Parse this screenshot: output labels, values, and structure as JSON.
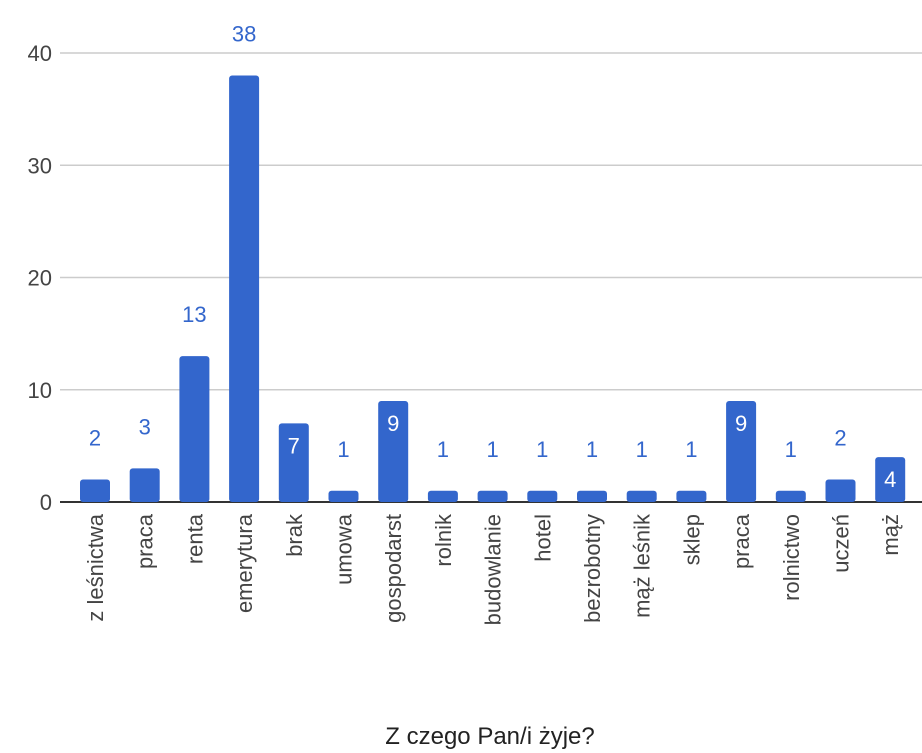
{
  "chart_data": {
    "type": "bar",
    "title": "",
    "xlabel": "Z czego Pan/i żyje?",
    "ylabel": "",
    "ylim": [
      0,
      40
    ],
    "yticks": [
      0,
      10,
      20,
      30,
      40
    ],
    "grid": true,
    "legend": "none",
    "bar_color": "#3366cc",
    "label_color_outside": "#3366cc",
    "label_color_inside": "#ffffff",
    "categories": [
      "z leśnictwa",
      "praca",
      "renta",
      "emerytura",
      "brak",
      "umowa",
      "gospodarst",
      "rolnik",
      "budowlanie",
      "hotel",
      "bezrobotny",
      "mąż leśnik",
      "sklep",
      "praca",
      "rolnictwo",
      "uczeń",
      "mąż"
    ],
    "values": [
      2,
      3,
      13,
      38,
      7,
      1,
      9,
      1,
      1,
      1,
      1,
      1,
      1,
      9,
      1,
      2,
      4
    ]
  }
}
